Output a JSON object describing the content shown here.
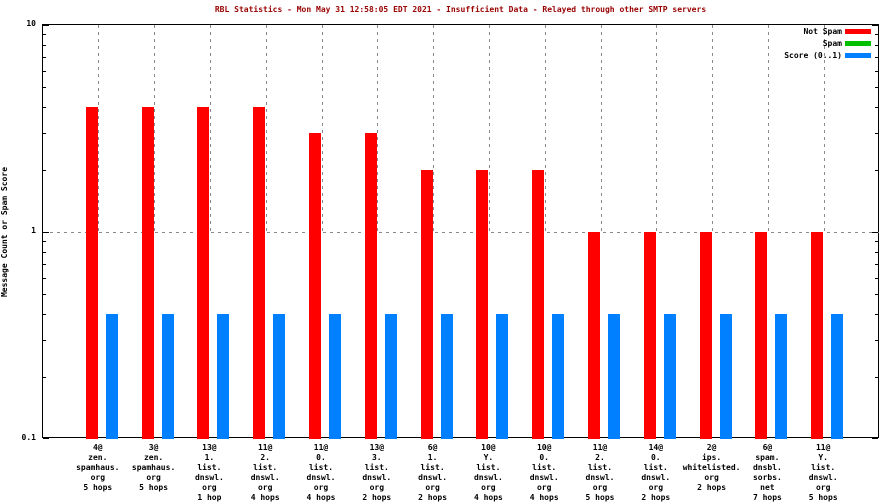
{
  "title": {
    "text": "RBL Statistics - Mon May 31 12:58:05 EDT 2021 - Insufficient Data - Relayed through other SMTP servers",
    "color": "#990000"
  },
  "y_axis": {
    "label": "Message Count or Spam Score",
    "scale": "log",
    "tick_labels": [
      "10",
      "1",
      "0.1"
    ],
    "tick_values": [
      10,
      1,
      0.1
    ]
  },
  "legend": {
    "position": "top-right-inside",
    "items": [
      {
        "label": "Not Spam",
        "color": "#ff0000"
      },
      {
        "label": "Spam",
        "color": "#00c000"
      },
      {
        "label": "Score (0..1)",
        "color": "#0080ff"
      }
    ]
  },
  "chart_data": {
    "type": "bar",
    "title": "RBL Statistics - Mon May 31 12:58:05 EDT 2021 - Insufficient Data - Relayed through other SMTP servers",
    "xlabel": "",
    "ylabel": "Message Count or Spam Score",
    "y_scale": "log",
    "ylim": [
      0.1,
      10
    ],
    "grid": "dotted gridline at y=1 and dotted vertical gridlines at each category (upper half only)",
    "legend_position": "top right inside",
    "categories": [
      [
        "4@",
        "zen.",
        "spamhaus.",
        "org",
        "5 hops"
      ],
      [
        "3@",
        "zen.",
        "spamhaus.",
        "org",
        "5 hops"
      ],
      [
        "13@",
        "1.",
        "list.",
        "dnswl.",
        "org",
        "1 hop"
      ],
      [
        "11@",
        "2.",
        "list.",
        "dnswl.",
        "org",
        "4 hops"
      ],
      [
        "11@",
        "0.",
        "list.",
        "dnswl.",
        "org",
        "4 hops"
      ],
      [
        "13@",
        "3.",
        "list.",
        "dnswl.",
        "org",
        "2 hops"
      ],
      [
        "6@",
        "1.",
        "list.",
        "dnswl.",
        "org",
        "2 hops"
      ],
      [
        "10@",
        "Y.",
        "list.",
        "dnswl.",
        "org",
        "4 hops"
      ],
      [
        "10@",
        "0.",
        "list.",
        "dnswl.",
        "org",
        "4 hops"
      ],
      [
        "11@",
        "2.",
        "list.",
        "dnswl.",
        "org",
        "5 hops"
      ],
      [
        "14@",
        "0.",
        "list.",
        "dnswl.",
        "org",
        "2 hops"
      ],
      [
        "2@",
        "ips.",
        "whitelisted.",
        "org",
        "2 hops"
      ],
      [
        "6@",
        "spam.",
        "dnsbl.",
        "sorbs.",
        "net",
        "7 hops"
      ],
      [
        "11@",
        "Y.",
        "list.",
        "dnswl.",
        "org",
        "5 hops"
      ]
    ],
    "series": [
      {
        "name": "Not Spam",
        "color": "#ff0000",
        "values": [
          4,
          4,
          4,
          4,
          3,
          3,
          2,
          2,
          2,
          1,
          1,
          1,
          1,
          1
        ]
      },
      {
        "name": "Spam",
        "color": "#00c000",
        "values": [
          0,
          0,
          0,
          0,
          0,
          0,
          0,
          0,
          0,
          0,
          0,
          0,
          0,
          0
        ]
      },
      {
        "name": "Score (0..1)",
        "color": "#0080ff",
        "values": [
          0.4,
          0.4,
          0.4,
          0.4,
          0.4,
          0.4,
          0.4,
          0.4,
          0.4,
          0.4,
          0.4,
          0.4,
          0.4,
          0.4
        ]
      }
    ]
  }
}
